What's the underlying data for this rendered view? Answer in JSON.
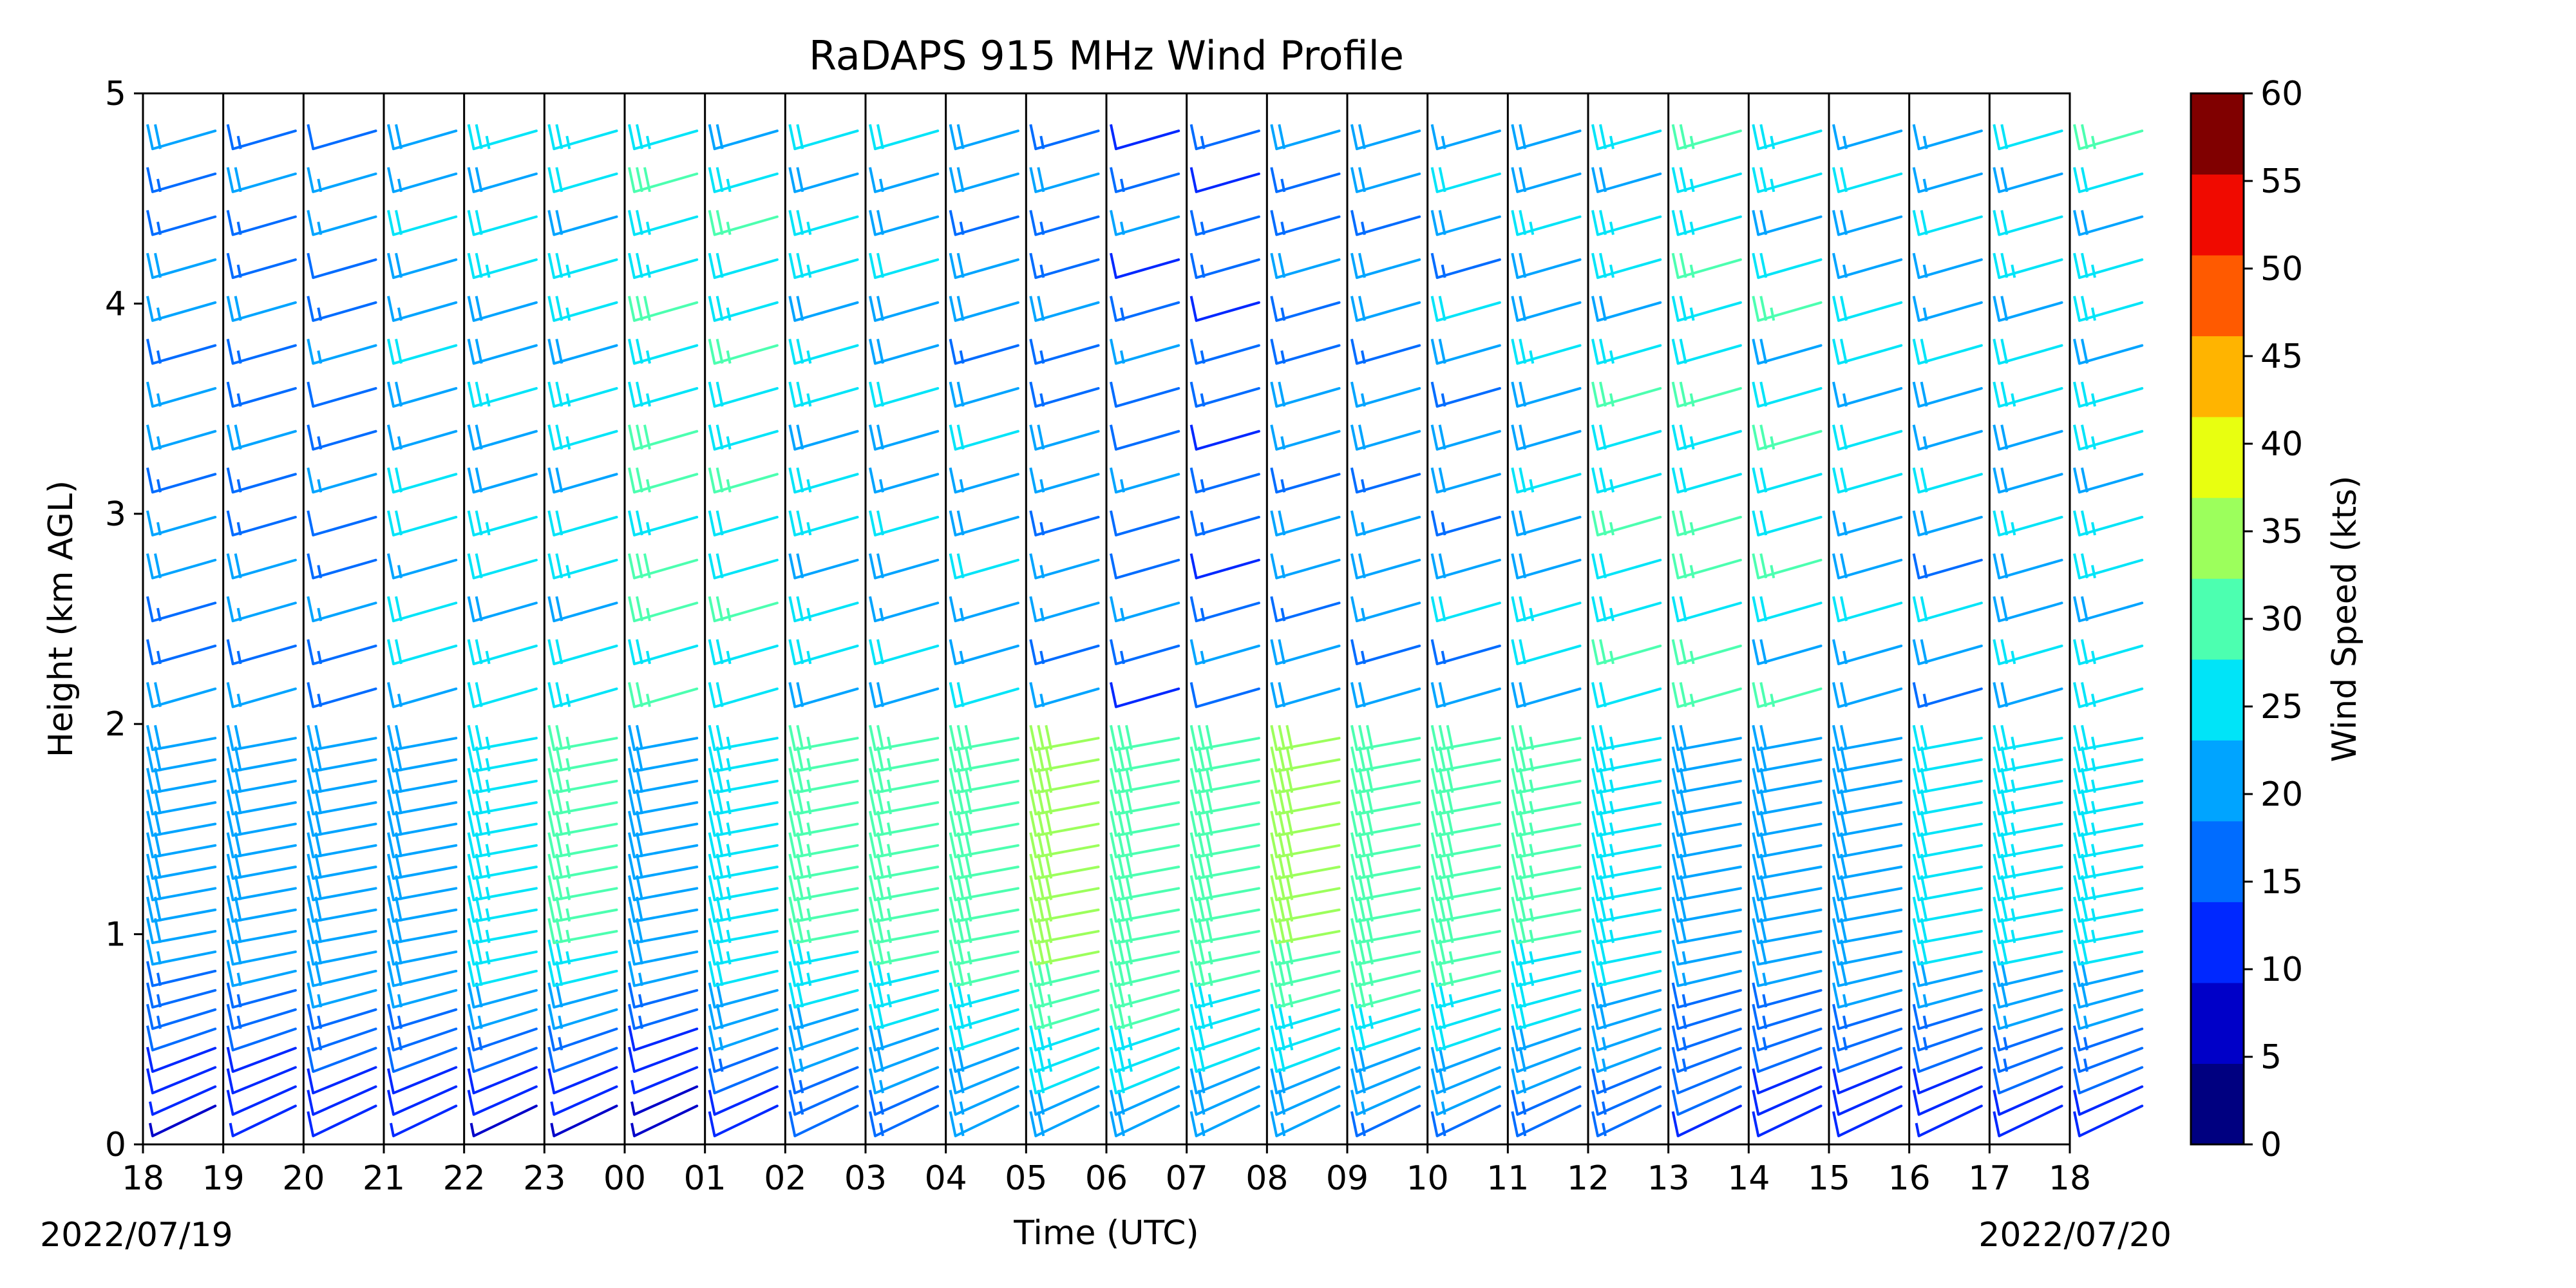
{
  "chart_data": {
    "type": "wind-barbs",
    "title": "RaDAPS 915 MHz Wind Profile",
    "xlabel": "Time (UTC)",
    "ylabel": "Height (km AGL)",
    "ylim": [
      0,
      5
    ],
    "y_ticks": [
      "0",
      "1",
      "2",
      "3",
      "4",
      "5"
    ],
    "x_ticks": [
      "18",
      "19",
      "20",
      "21",
      "22",
      "23",
      "00",
      "01",
      "02",
      "03",
      "04",
      "05",
      "06",
      "07",
      "08",
      "09",
      "10",
      "11",
      "12",
      "13",
      "14",
      "15",
      "16",
      "17",
      "18"
    ],
    "start_date": "2022/07/19",
    "end_date": "2022/07/20",
    "colorbar": {
      "label": "Wind Speed (kts)",
      "ticks": [
        "0",
        "5",
        "10",
        "15",
        "20",
        "25",
        "30",
        "35",
        "40",
        "45",
        "50",
        "55",
        "60"
      ],
      "range": [
        0,
        60
      ],
      "colors": [
        "#000080",
        "#0000c8",
        "#0028ff",
        "#006cff",
        "#00a4ff",
        "#00e4f8",
        "#4cffb0",
        "#9cff5c",
        "#e8ff10",
        "#ffb400",
        "#ff5a00",
        "#f00a00",
        "#800000"
      ]
    },
    "profiles_note_speed_kts": "approximate wind speed (kts) by hour column; low/mid/upper layers",
    "profiles": [
      {
        "hour": "18",
        "low": 8,
        "mid": 20,
        "upper": 18
      },
      {
        "hour": "19",
        "low": 9,
        "mid": 21,
        "upper": 18
      },
      {
        "hour": "20",
        "low": 10,
        "mid": 22,
        "upper": 17
      },
      {
        "hour": "21",
        "low": 9,
        "mid": 23,
        "upper": 22
      },
      {
        "hour": "22",
        "low": 7,
        "mid": 27,
        "upper": 24
      },
      {
        "hour": "23",
        "low": 6,
        "mid": 28,
        "upper": 24
      },
      {
        "hour": "00",
        "low": 5,
        "mid": 22,
        "upper": 28
      },
      {
        "hour": "01",
        "low": 10,
        "mid": 27,
        "upper": 26
      },
      {
        "hour": "02",
        "low": 14,
        "mid": 28,
        "upper": 25
      },
      {
        "hour": "03",
        "low": 16,
        "mid": 29,
        "upper": 22
      },
      {
        "hour": "04",
        "low": 18,
        "mid": 30,
        "upper": 21
      },
      {
        "hour": "05",
        "low": 20,
        "mid": 33,
        "upper": 18
      },
      {
        "hour": "06",
        "low": 21,
        "mid": 32,
        "upper": 16
      },
      {
        "hour": "07",
        "low": 19,
        "mid": 30,
        "upper": 16
      },
      {
        "hour": "08",
        "low": 18,
        "mid": 33,
        "upper": 19
      },
      {
        "hour": "09",
        "low": 17,
        "mid": 32,
        "upper": 20
      },
      {
        "hour": "10",
        "low": 17,
        "mid": 30,
        "upper": 21
      },
      {
        "hour": "11",
        "low": 16,
        "mid": 28,
        "upper": 23
      },
      {
        "hour": "12",
        "low": 15,
        "mid": 25,
        "upper": 26
      },
      {
        "hour": "13",
        "low": 13,
        "mid": 20,
        "upper": 27
      },
      {
        "hour": "14",
        "low": 10,
        "mid": 21,
        "upper": 25
      },
      {
        "hour": "15",
        "low": 10,
        "mid": 22,
        "upper": 22
      },
      {
        "hour": "16",
        "low": 9,
        "mid": 24,
        "upper": 21
      },
      {
        "hour": "17",
        "low": 10,
        "mid": 25,
        "upper": 23
      },
      {
        "hour": "18",
        "low": 10,
        "mid": 25,
        "upper": 25
      }
    ]
  }
}
